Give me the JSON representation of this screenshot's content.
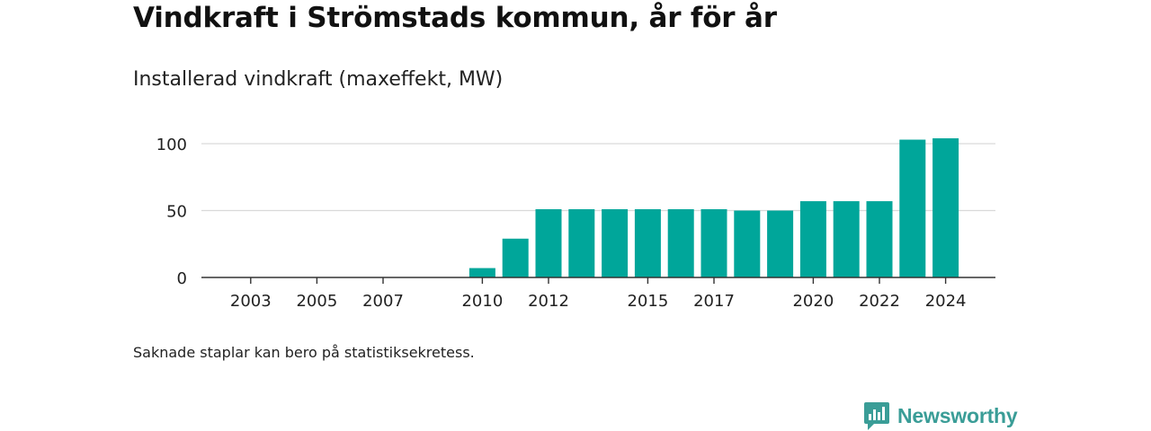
{
  "title": "Vindkraft i Strömstads kommun, år för år",
  "subtitle": "Installerad vindkraft (maxeffekt, MW)",
  "footnote": "Saknade staplar kan bero på statistiksekretess.",
  "brand": {
    "name": "Newsworthy",
    "icon": "newsworthy-logo-icon",
    "color": "#3a9d97"
  },
  "chart_data": {
    "type": "bar",
    "x": [
      2002,
      2003,
      2004,
      2005,
      2006,
      2007,
      2008,
      2009,
      2010,
      2011,
      2012,
      2013,
      2014,
      2015,
      2016,
      2017,
      2018,
      2019,
      2020,
      2021,
      2022,
      2023,
      2024
    ],
    "values": [
      null,
      null,
      null,
      null,
      null,
      null,
      null,
      null,
      7,
      29,
      51,
      51,
      51,
      51,
      51,
      51,
      50,
      50,
      57,
      57,
      57,
      103,
      104
    ],
    "xticks": [
      2003,
      2005,
      2007,
      2010,
      2012,
      2015,
      2017,
      2020,
      2022,
      2024
    ],
    "yticks": [
      0,
      50,
      100
    ],
    "ylim": [
      0,
      100
    ],
    "bar_color": "#00a69a",
    "grid": true,
    "xlabel": "",
    "ylabel": ""
  }
}
